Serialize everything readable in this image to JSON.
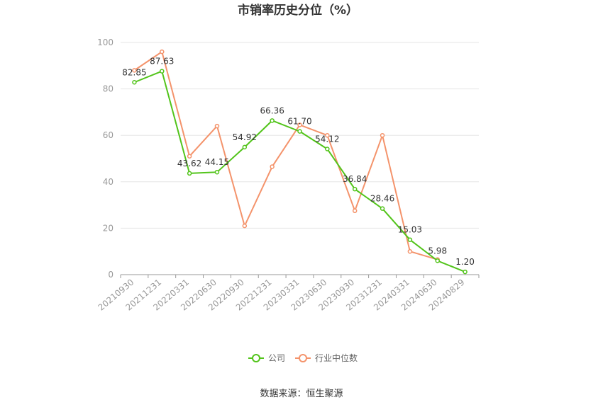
{
  "chart_data": {
    "type": "line",
    "title": "市销率历史分位（%）",
    "categories": [
      "20210930",
      "20211231",
      "20220331",
      "20220630",
      "20220930",
      "20221231",
      "20230331",
      "20230630",
      "20230930",
      "20231231",
      "20240331",
      "20240630",
      "20240829"
    ],
    "ylim": [
      0,
      100
    ],
    "yticks": [
      0,
      20,
      40,
      60,
      80,
      100
    ],
    "grid": true,
    "legend_position": "bottom",
    "series": [
      {
        "name": "公司",
        "color": "#52c41a",
        "values": [
          82.85,
          87.63,
          43.62,
          44.15,
          54.92,
          66.36,
          61.7,
          54.12,
          36.84,
          28.46,
          15.03,
          5.98,
          1.2
        ],
        "labels": [
          "82.85",
          "87.63",
          "43.62",
          "44.15",
          "54.92",
          "66.36",
          "61.70",
          "54.12",
          "36.84",
          "28.46",
          "15.03",
          "5.98",
          "1.20"
        ]
      },
      {
        "name": "行业中位数",
        "color": "#f4936b",
        "values": [
          88,
          96,
          51,
          64,
          21,
          46.5,
          64.5,
          60,
          27.5,
          60,
          10,
          6.5,
          null
        ]
      }
    ]
  },
  "footer": {
    "source": "数据来源：恒生聚源"
  }
}
